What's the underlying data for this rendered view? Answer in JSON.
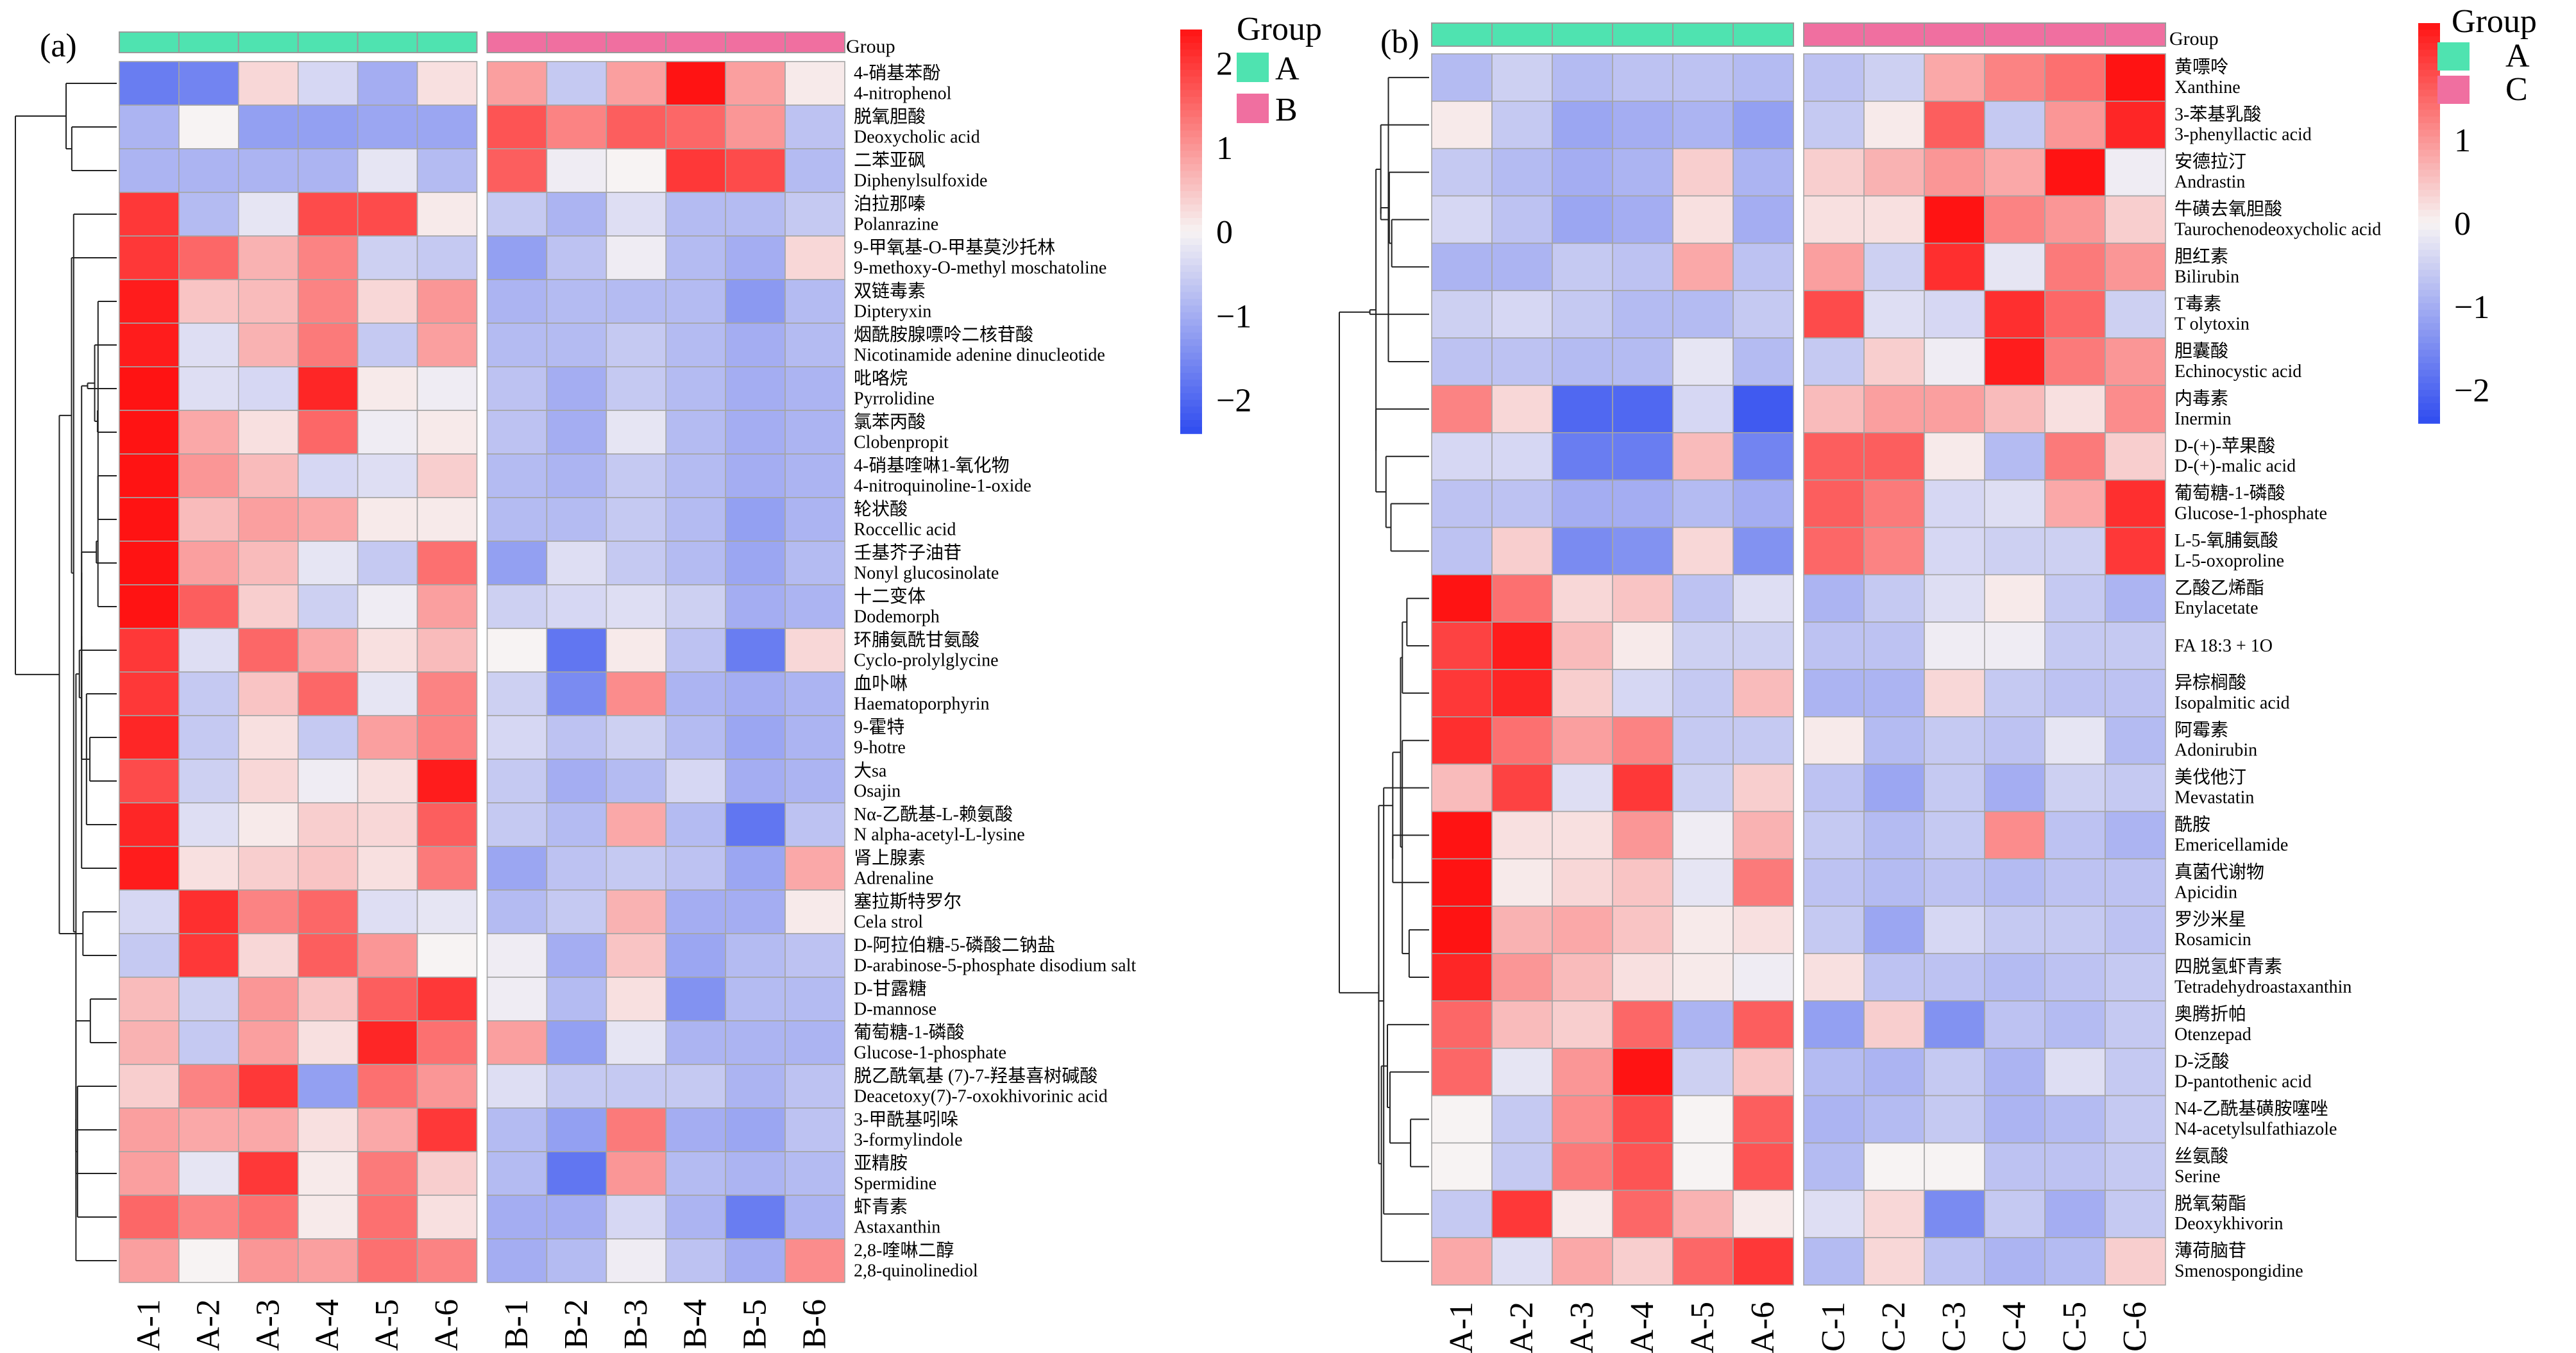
{
  "colors": {
    "group_a": "#4fe3b0",
    "group_b": "#f06fa0",
    "low": "#2f4cf0",
    "mid": "#f7f3f3",
    "high": "#ff1313"
  },
  "chart_data": [
    {
      "type": "heatmap",
      "panel_label": "(a)",
      "group_header": "Group",
      "legend_title": "Group",
      "legend_groups": [
        "A",
        "B"
      ],
      "colorbar_ticks": [
        "2",
        "1",
        "0",
        "−1",
        "−2"
      ],
      "colorbar_values": [
        2,
        1,
        0,
        -1,
        -2
      ],
      "color_range": [
        -2.4,
        2.4
      ],
      "columns": [
        "A-1",
        "A-2",
        "A-3",
        "A-4",
        "A-5",
        "A-6",
        "B-1",
        "B-2",
        "B-3",
        "B-4",
        "B-5",
        "B-6"
      ],
      "rows": [
        {
          "name_cn": "4-硝基苯酚",
          "name_en": "4-nitrophenol",
          "values": [
            -1.7,
            -1.6,
            0.3,
            -0.4,
            -1.0,
            0.2,
            0.9,
            -0.6,
            0.9,
            2.4,
            0.9,
            0.1
          ]
        },
        {
          "name_cn": "脱氧胆酸",
          "name_en": "Deoxycholic acid",
          "values": [
            -0.9,
            0.0,
            -1.2,
            -1.2,
            -1.1,
            -1.1,
            1.7,
            1.2,
            1.6,
            1.5,
            1.0,
            -0.7
          ]
        },
        {
          "name_cn": "二苯亚砜",
          "name_en": "Diphenylsulfoxide",
          "values": [
            -0.9,
            -0.9,
            -0.9,
            -0.9,
            -0.2,
            -0.8,
            1.6,
            -0.1,
            0.0,
            2.0,
            1.8,
            -0.8
          ]
        },
        {
          "name_cn": "泊拉那嗪",
          "name_en": "Polanrazine",
          "values": [
            2.0,
            -0.8,
            -0.2,
            1.8,
            1.8,
            0.1,
            -0.6,
            -0.9,
            -0.3,
            -0.8,
            -0.8,
            -0.6
          ]
        },
        {
          "name_cn": "9-甲氧基-O-甲基莫沙托林",
          "name_en": "9-methoxy-O-methyl moschatoline",
          "values": [
            2.0,
            1.5,
            0.7,
            1.2,
            -0.5,
            -0.6,
            -1.2,
            -0.7,
            -0.1,
            -0.8,
            -1.0,
            0.3
          ]
        },
        {
          "name_cn": "双链毒素",
          "name_en": "Dipteryxin",
          "values": [
            2.3,
            0.5,
            0.6,
            1.2,
            0.3,
            1.0,
            -0.9,
            -0.8,
            -0.8,
            -0.8,
            -1.3,
            -0.8
          ]
        },
        {
          "name_cn": "烟酰胺腺嘌呤二核苷酸",
          "name_en": "Nicotinamide adenine dinucleotide",
          "values": [
            2.3,
            -0.3,
            0.7,
            1.3,
            -0.6,
            0.9,
            -0.8,
            -0.8,
            -0.6,
            -0.8,
            -1.0,
            -0.8
          ]
        },
        {
          "name_cn": "吡咯烷",
          "name_en": "Pyrrolidine",
          "values": [
            2.4,
            -0.3,
            -0.4,
            2.2,
            0.1,
            -0.1,
            -0.7,
            -1.0,
            -0.6,
            -0.8,
            -1.0,
            -0.9
          ]
        },
        {
          "name_cn": "氯苯丙酸",
          "name_en": "Clobenpropit",
          "values": [
            2.4,
            0.8,
            0.2,
            1.5,
            -0.1,
            0.1,
            -0.7,
            -1.0,
            -0.2,
            -0.8,
            -1.0,
            -0.9
          ]
        },
        {
          "name_cn": "4-硝基喹啉1-氧化物",
          "name_en": "4-nitroquinoline-1-oxide",
          "values": [
            2.5,
            1.0,
            0.6,
            -0.4,
            -0.3,
            0.4,
            -0.8,
            -0.9,
            -0.6,
            -0.8,
            -1.0,
            -0.9
          ]
        },
        {
          "name_cn": "轮状酸",
          "name_en": "Roccellic acid",
          "values": [
            2.5,
            0.6,
            0.9,
            0.8,
            0.1,
            0.1,
            -0.8,
            -0.8,
            -0.6,
            -0.8,
            -1.2,
            -0.9
          ]
        },
        {
          "name_cn": "壬基芥子油苷",
          "name_en": "Nonyl glucosinolate",
          "values": [
            2.4,
            0.9,
            0.6,
            -0.2,
            -0.6,
            1.4,
            -1.2,
            -0.3,
            -0.6,
            -0.8,
            -1.1,
            -0.8
          ]
        },
        {
          "name_cn": "十二变体",
          "name_en": "Dodemorph",
          "values": [
            2.4,
            1.6,
            0.4,
            -0.5,
            -0.1,
            0.9,
            -0.5,
            -0.4,
            -0.3,
            -0.5,
            -1.0,
            -0.9
          ]
        },
        {
          "name_cn": "环脯氨酰甘氨酸",
          "name_en": "Cyclo-prolylglycine",
          "values": [
            2.0,
            -0.3,
            1.5,
            0.8,
            0.2,
            0.6,
            0.0,
            -1.8,
            0.1,
            -0.7,
            -1.7,
            0.3
          ]
        },
        {
          "name_cn": "血卟啉",
          "name_en": "Haematoporphyrin",
          "values": [
            2.0,
            -0.6,
            0.5,
            1.5,
            -0.2,
            1.2,
            -0.5,
            -1.5,
            1.1,
            -0.9,
            -1.0,
            -0.9
          ]
        },
        {
          "name_cn": "9-霍特",
          "name_en": "9-hotre",
          "values": [
            2.2,
            -0.6,
            0.2,
            -0.6,
            0.9,
            1.2,
            -0.4,
            -0.7,
            -0.5,
            -0.8,
            -1.1,
            -0.9
          ]
        },
        {
          "name_cn": "大sa",
          "name_en": "Osajin",
          "values": [
            1.8,
            -0.5,
            0.3,
            -0.1,
            0.2,
            2.3,
            -0.6,
            -1.0,
            -0.8,
            -0.4,
            -1.0,
            -0.9
          ]
        },
        {
          "name_cn": "Nα-乙酰基-L-赖氨酸",
          "name_en": "N alpha-acetyl-L-lysine",
          "values": [
            2.2,
            -0.3,
            0.1,
            0.4,
            0.3,
            1.6,
            -0.6,
            -0.8,
            0.8,
            -0.8,
            -1.8,
            -0.7
          ]
        },
        {
          "name_cn": "肾上腺素",
          "name_en": "Adrenaline",
          "values": [
            2.3,
            0.2,
            0.4,
            0.5,
            0.2,
            1.3,
            -1.1,
            -0.7,
            -0.6,
            -0.7,
            -1.1,
            0.8
          ]
        },
        {
          "name_cn": "塞拉斯特罗尔",
          "name_en": "Cela strol",
          "values": [
            -0.4,
            2.1,
            1.2,
            1.5,
            -0.3,
            -0.2,
            -0.8,
            -0.6,
            0.7,
            -1.0,
            -1.0,
            0.1
          ]
        },
        {
          "name_cn": "D-阿拉伯糖-5-磷酸二钠盐",
          "name_en": "D-arabinose-5-phosphate disodium salt",
          "values": [
            -0.6,
            2.0,
            0.3,
            1.6,
            1.0,
            0.0,
            -0.1,
            -1.0,
            0.5,
            -1.1,
            -0.8,
            -0.7
          ]
        },
        {
          "name_cn": "D-甘露糖",
          "name_en": "D-mannose",
          "values": [
            0.6,
            -0.5,
            1.0,
            0.5,
            1.6,
            2.0,
            -0.1,
            -0.8,
            0.2,
            -1.4,
            -0.8,
            -0.8
          ]
        },
        {
          "name_cn": "葡萄糖-1-磷酸",
          "name_en": "Glucose-1-phosphate",
          "values": [
            0.7,
            -0.6,
            0.9,
            0.2,
            2.2,
            1.4,
            0.9,
            -1.2,
            -0.2,
            -0.9,
            -0.9,
            -0.9
          ]
        },
        {
          "name_cn": "脱乙酰氧基 (7)-7-羟基喜树碱酸",
          "name_en": "Deacetoxy(7)-7-oxokhivorinic acid",
          "values": [
            0.4,
            1.2,
            2.0,
            -1.2,
            1.4,
            1.0,
            -0.3,
            -0.6,
            -0.6,
            -0.6,
            -0.9,
            -0.7
          ]
        },
        {
          "name_cn": "3-甲酰基吲哚",
          "name_en": "3-formylindole",
          "values": [
            0.9,
            0.8,
            0.8,
            0.2,
            0.8,
            2.0,
            -0.8,
            -1.2,
            1.3,
            -1.0,
            -1.1,
            -0.7
          ]
        },
        {
          "name_cn": "亚精胺",
          "name_en": "Spermidine",
          "values": [
            0.9,
            -0.2,
            2.0,
            0.1,
            1.3,
            0.4,
            -0.8,
            -1.8,
            1.0,
            -0.8,
            -0.9,
            -0.8
          ]
        },
        {
          "name_cn": "虾青素",
          "name_en": "Astaxanthin",
          "values": [
            1.5,
            1.2,
            1.4,
            0.1,
            1.4,
            0.2,
            -1.0,
            -1.0,
            -0.4,
            -0.9,
            -1.7,
            -0.9
          ]
        },
        {
          "name_cn": "2,8-喹啉二醇",
          "name_en": "2,8-quinolinediol",
          "values": [
            0.9,
            0.0,
            1.0,
            0.9,
            1.4,
            1.2,
            -1.0,
            -0.8,
            -0.1,
            -0.7,
            -1.0,
            1.1
          ]
        }
      ]
    },
    {
      "type": "heatmap",
      "panel_label": "(b)",
      "group_header": "Group",
      "legend_title": "Group",
      "legend_groups": [
        "A",
        "C"
      ],
      "colorbar_ticks": [
        "2",
        "1",
        "0",
        "−1",
        "−2"
      ],
      "colorbar_values": [
        2,
        1,
        0,
        -1,
        -2
      ],
      "color_range": [
        -2.4,
        2.4
      ],
      "columns": [
        "A-1",
        "A-2",
        "A-3",
        "A-4",
        "A-5",
        "A-6",
        "C-1",
        "C-2",
        "C-3",
        "C-4",
        "C-5",
        "C-6"
      ],
      "rows": [
        {
          "name_cn": "黄嘌呤",
          "name_en": "Xanthine",
          "values": [
            -0.8,
            -0.5,
            -0.8,
            -0.7,
            -0.7,
            -0.8,
            -0.7,
            -0.5,
            0.8,
            1.2,
            1.4,
            2.5
          ]
        },
        {
          "name_cn": "3-苯基乳酸",
          "name_en": "3-phenyllactic acid",
          "values": [
            0.1,
            -0.6,
            -1.1,
            -1.0,
            -0.9,
            -1.2,
            -0.6,
            0.1,
            1.6,
            -0.6,
            1.0,
            2.2
          ]
        },
        {
          "name_cn": "安德拉汀",
          "name_en": "Andrastin",
          "values": [
            -0.6,
            -0.8,
            -1.0,
            -0.9,
            0.4,
            -0.9,
            0.4,
            0.7,
            1.0,
            0.8,
            2.6,
            -0.1
          ]
        },
        {
          "name_cn": "牛磺去氧胆酸",
          "name_en": "Taurochenodeoxycholic acid",
          "values": [
            -0.4,
            -0.7,
            -1.1,
            -1.0,
            0.2,
            -1.0,
            0.2,
            0.2,
            2.4,
            1.2,
            1.0,
            0.4
          ]
        },
        {
          "name_cn": "胆红素",
          "name_en": "Bilirubin",
          "values": [
            -0.9,
            -0.9,
            -0.6,
            -0.7,
            0.8,
            -0.7,
            0.9,
            -0.5,
            2.1,
            -0.2,
            1.3,
            1.0
          ]
        },
        {
          "name_cn": "T毒素",
          "name_en": "T olytoxin",
          "values": [
            -0.5,
            -0.4,
            -0.6,
            -0.8,
            -0.8,
            -0.6,
            1.8,
            -0.3,
            -0.4,
            2.1,
            1.5,
            -0.5
          ]
        },
        {
          "name_cn": "胆囊酸",
          "name_en": "Echinocystic acid",
          "values": [
            -0.7,
            -0.7,
            -0.8,
            -0.8,
            -0.2,
            -0.8,
            -0.6,
            0.4,
            -0.1,
            2.3,
            1.3,
            1.0
          ]
        },
        {
          "name_cn": "内毒素",
          "name_en": "Inermin",
          "values": [
            1.2,
            0.3,
            -2.0,
            -2.0,
            -0.4,
            -2.2,
            0.6,
            0.9,
            0.9,
            0.6,
            0.2,
            1.1
          ]
        },
        {
          "name_cn": "D-(+)-苹果酸",
          "name_en": "D-(+)-malic acid",
          "values": [
            -0.4,
            -0.4,
            -1.7,
            -1.7,
            0.6,
            -1.6,
            1.6,
            1.6,
            0.1,
            -0.8,
            1.3,
            0.4
          ]
        },
        {
          "name_cn": "葡萄糖-1-磷酸",
          "name_en": "Glucose-1-phosphate",
          "values": [
            -0.7,
            -0.7,
            -1.0,
            -1.0,
            -0.8,
            -1.0,
            1.6,
            1.3,
            -0.4,
            -0.3,
            0.8,
            2.1
          ]
        },
        {
          "name_cn": "L-5-氧脯氨酸",
          "name_en": "L-5-oxoproline",
          "values": [
            -0.7,
            0.4,
            -1.5,
            -1.4,
            0.3,
            -1.4,
            1.5,
            1.2,
            -0.4,
            -0.5,
            -0.5,
            2.0
          ]
        },
        {
          "name_cn": "乙酸乙烯酯",
          "name_en": "Enylacetate",
          "values": [
            2.4,
            1.4,
            0.3,
            0.5,
            -0.7,
            -0.3,
            -0.9,
            -0.6,
            -0.3,
            0.1,
            -0.6,
            -0.9
          ]
        },
        {
          "name_cn": "FA 18:3 + 1O",
          "name_en": "",
          "values": [
            1.9,
            2.3,
            0.6,
            0.1,
            -0.5,
            -0.5,
            -0.7,
            -0.7,
            -0.1,
            -0.1,
            -0.6,
            -0.6
          ]
        },
        {
          "name_cn": "异棕榈酸",
          "name_en": "Isopalmitic acid",
          "values": [
            2.0,
            2.2,
            0.4,
            -0.4,
            -0.6,
            0.6,
            -0.9,
            -0.9,
            0.3,
            -0.6,
            -0.7,
            -0.7
          ]
        },
        {
          "name_cn": "阿霉素",
          "name_en": "Adonirubin",
          "values": [
            2.1,
            1.4,
            0.9,
            1.2,
            -0.6,
            -0.6,
            0.1,
            -0.8,
            -0.6,
            -0.7,
            -0.2,
            -0.8
          ]
        },
        {
          "name_cn": "美伐他汀",
          "name_en": "Mevastatin",
          "values": [
            0.6,
            1.9,
            -0.3,
            2.0,
            -0.5,
            0.4,
            -0.7,
            -1.1,
            -0.6,
            -1.0,
            -0.5,
            -0.6
          ]
        },
        {
          "name_cn": "酰胺",
          "name_en": "Emericellamide",
          "values": [
            2.4,
            0.2,
            0.2,
            1.0,
            -0.1,
            0.7,
            -0.6,
            -0.8,
            -0.6,
            1.1,
            -0.7,
            -0.9
          ]
        },
        {
          "name_cn": "真菌代谢物",
          "name_en": "Apicidin",
          "values": [
            2.4,
            0.1,
            0.3,
            0.5,
            -0.2,
            1.3,
            -0.7,
            -0.8,
            -0.7,
            -0.8,
            -0.7,
            -0.7
          ]
        },
        {
          "name_cn": "罗沙米星",
          "name_en": "Rosamicin",
          "values": [
            2.4,
            0.7,
            0.8,
            0.5,
            0.1,
            0.2,
            -0.6,
            -1.1,
            -0.4,
            -0.6,
            -0.6,
            -0.7
          ]
        },
        {
          "name_cn": "四脱氢虾青素",
          "name_en": "Tetradehydroastaxanthin",
          "values": [
            2.2,
            1.0,
            0.6,
            0.2,
            0.1,
            -0.1,
            0.2,
            -0.7,
            -0.7,
            -0.8,
            -0.7,
            -0.6
          ]
        },
        {
          "name_cn": "奥腾折帕",
          "name_en": "Otenzepad",
          "values": [
            1.5,
            0.6,
            0.4,
            1.5,
            -0.9,
            1.6,
            -1.2,
            0.4,
            -1.4,
            -0.7,
            -0.8,
            -0.6
          ]
        },
        {
          "name_cn": "D-泛酸",
          "name_en": "D-pantothenic acid",
          "values": [
            1.5,
            -0.2,
            1.0,
            2.4,
            -0.5,
            0.5,
            -0.8,
            -0.9,
            -0.6,
            -0.9,
            -0.3,
            -0.6
          ]
        },
        {
          "name_cn": "N4-乙酰基磺胺噻唑",
          "name_en": "N4-acetylsulfathiazole",
          "values": [
            0.0,
            -0.6,
            1.1,
            1.8,
            0.0,
            1.6,
            -0.9,
            -0.8,
            -0.6,
            -0.9,
            -0.8,
            -0.6
          ]
        },
        {
          "name_cn": "丝氨酸",
          "name_en": "Serine",
          "values": [
            0.0,
            -0.6,
            1.3,
            1.7,
            0.0,
            1.7,
            -0.8,
            0.0,
            0.0,
            -0.7,
            -0.7,
            -0.6
          ]
        },
        {
          "name_cn": "脱氧菊酯",
          "name_en": "Deoxykhivorin",
          "values": [
            -0.6,
            2.0,
            0.1,
            1.5,
            0.7,
            0.1,
            -0.3,
            0.3,
            -1.5,
            -0.6,
            -1.0,
            -0.6
          ]
        },
        {
          "name_cn": "薄荷脑苷",
          "name_en": "Smenospongidine",
          "values": [
            0.8,
            -0.3,
            0.8,
            0.4,
            1.5,
            2.0,
            -0.8,
            0.3,
            -0.7,
            -0.9,
            -0.8,
            0.4
          ]
        }
      ]
    }
  ]
}
